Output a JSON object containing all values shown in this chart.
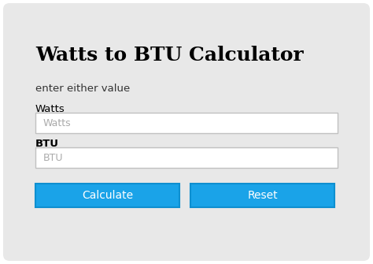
{
  "title": "Watts to BTU Calculator",
  "subtitle": "enter either value",
  "label_watts": "Watts",
  "label_btu": "BTU",
  "placeholder_watts": "Watts",
  "placeholder_btu": "BTU",
  "btn_calculate": "Calculate",
  "btn_reset": "Reset",
  "bg_outer": "#ffffff",
  "bg_card": "#e8e8e8",
  "bg_input": "#ffffff",
  "btn_color": "#1aa3e8",
  "btn_text_color": "#ffffff",
  "input_border": "#c0c0c0",
  "btn_border": "#0e8fd0",
  "title_color": "#000000",
  "subtitle_color": "#333333",
  "label_color": "#000000",
  "placeholder_color": "#aaaaaa",
  "figsize": [
    4.74,
    3.35
  ],
  "dpi": 100
}
